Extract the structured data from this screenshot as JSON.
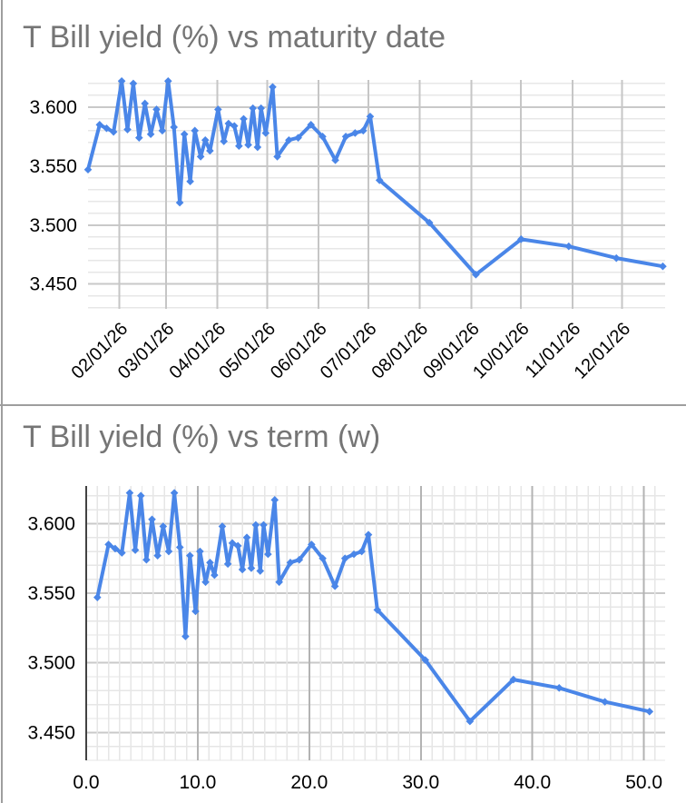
{
  "page": {
    "background": "#ffffff",
    "frame_line_color": "#9e9e9e",
    "divider_color": "#9e9e9e",
    "title_color": "#757575",
    "axis_label_color": "#000000"
  },
  "chart_data": [
    {
      "type": "line",
      "title": "T Bill yield (%) vs maturity date",
      "xlabel": "",
      "ylabel": "",
      "legend": "none",
      "grid": true,
      "xlim_weeks": [
        1.0,
        50.7
      ],
      "ylim": [
        3.429,
        3.623
      ],
      "x_axis": {
        "kind": "maturity date",
        "rotation_deg": -45,
        "minor_grid": false,
        "tick_labels": [
          "02/01/26",
          "03/01/26",
          "04/01/26",
          "05/01/26",
          "06/01/26",
          "07/01/26",
          "08/01/26",
          "09/01/26",
          "10/01/26",
          "11/01/26",
          "12/01/26"
        ],
        "tick_positions_weeks": [
          3.714,
          7.714,
          12.143,
          16.429,
          20.857,
          25.143,
          29.571,
          34.0,
          38.286,
          42.714,
          47.0
        ]
      },
      "y_axis": {
        "tick_labels": [
          "3.450",
          "3.500",
          "3.550",
          "3.600"
        ],
        "tick_values": [
          3.45,
          3.5,
          3.55,
          3.6
        ],
        "minor_step": 0.01
      },
      "series": [
        {
          "name": "T Bill yield (%)",
          "color": "#4a86e8",
          "marker": "diamond",
          "points_weeks_yield": [
            [
              1.0,
              3.547
            ],
            [
              2.0,
              3.585
            ],
            [
              2.6,
              3.582
            ],
            [
              3.2,
              3.579
            ],
            [
              3.9,
              3.622
            ],
            [
              4.4,
              3.581
            ],
            [
              4.9,
              3.62
            ],
            [
              5.4,
              3.574
            ],
            [
              5.9,
              3.603
            ],
            [
              6.4,
              3.577
            ],
            [
              6.9,
              3.598
            ],
            [
              7.4,
              3.58
            ],
            [
              7.9,
              3.622
            ],
            [
              8.4,
              3.583
            ],
            [
              8.9,
              3.519
            ],
            [
              9.3,
              3.577
            ],
            [
              9.8,
              3.537
            ],
            [
              10.2,
              3.58
            ],
            [
              10.7,
              3.558
            ],
            [
              11.1,
              3.572
            ],
            [
              11.5,
              3.563
            ],
            [
              12.2,
              3.598
            ],
            [
              12.7,
              3.571
            ],
            [
              13.1,
              3.586
            ],
            [
              13.6,
              3.584
            ],
            [
              14.0,
              3.567
            ],
            [
              14.4,
              3.59
            ],
            [
              14.8,
              3.568
            ],
            [
              15.2,
              3.599
            ],
            [
              15.6,
              3.566
            ],
            [
              15.9,
              3.599
            ],
            [
              16.3,
              3.578
            ],
            [
              16.9,
              3.617
            ],
            [
              17.3,
              3.558
            ],
            [
              18.3,
              3.572
            ],
            [
              19.1,
              3.574
            ],
            [
              20.2,
              3.585
            ],
            [
              21.2,
              3.575
            ],
            [
              22.3,
              3.555
            ],
            [
              23.2,
              3.575
            ],
            [
              24.0,
              3.578
            ],
            [
              24.7,
              3.58
            ],
            [
              25.3,
              3.592
            ],
            [
              26.1,
              3.538
            ],
            [
              30.4,
              3.502
            ],
            [
              34.4,
              3.458
            ],
            [
              38.3,
              3.488
            ],
            [
              42.4,
              3.482
            ],
            [
              46.5,
              3.472
            ],
            [
              50.5,
              3.465
            ]
          ]
        }
      ]
    },
    {
      "type": "line",
      "title": "T Bill yield (%) vs term (w)",
      "xlabel": "",
      "ylabel": "",
      "legend": "none",
      "grid": true,
      "xlim_weeks": [
        0.0,
        51.9
      ],
      "ylim": [
        3.43,
        3.627
      ],
      "x_axis": {
        "kind": "term (weeks)",
        "rotation_deg": 0,
        "minor_grid": true,
        "minor_step": 1,
        "axis_line": true,
        "tick_labels": [
          "0.0",
          "10.0",
          "20.0",
          "30.0",
          "40.0",
          "50.0"
        ],
        "tick_positions_weeks": [
          0,
          10,
          20,
          30,
          40,
          50
        ]
      },
      "y_axis": {
        "tick_labels": [
          "3.450",
          "3.500",
          "3.550",
          "3.600"
        ],
        "tick_values": [
          3.45,
          3.5,
          3.55,
          3.6
        ],
        "minor_step": 0.01
      },
      "series": [
        {
          "name": "T Bill yield (%)",
          "color": "#4a86e8",
          "marker": "diamond",
          "points_weeks_yield": [
            [
              1.0,
              3.547
            ],
            [
              2.0,
              3.585
            ],
            [
              2.6,
              3.582
            ],
            [
              3.2,
              3.579
            ],
            [
              3.9,
              3.622
            ],
            [
              4.4,
              3.581
            ],
            [
              4.9,
              3.62
            ],
            [
              5.4,
              3.574
            ],
            [
              5.9,
              3.603
            ],
            [
              6.4,
              3.577
            ],
            [
              6.9,
              3.598
            ],
            [
              7.4,
              3.58
            ],
            [
              7.9,
              3.622
            ],
            [
              8.4,
              3.583
            ],
            [
              8.9,
              3.519
            ],
            [
              9.3,
              3.577
            ],
            [
              9.8,
              3.537
            ],
            [
              10.2,
              3.58
            ],
            [
              10.7,
              3.558
            ],
            [
              11.1,
              3.572
            ],
            [
              11.5,
              3.563
            ],
            [
              12.2,
              3.598
            ],
            [
              12.7,
              3.571
            ],
            [
              13.1,
              3.586
            ],
            [
              13.6,
              3.584
            ],
            [
              14.0,
              3.567
            ],
            [
              14.4,
              3.59
            ],
            [
              14.8,
              3.568
            ],
            [
              15.2,
              3.599
            ],
            [
              15.6,
              3.566
            ],
            [
              15.9,
              3.599
            ],
            [
              16.3,
              3.578
            ],
            [
              16.9,
              3.617
            ],
            [
              17.3,
              3.558
            ],
            [
              18.3,
              3.572
            ],
            [
              19.1,
              3.574
            ],
            [
              20.2,
              3.585
            ],
            [
              21.2,
              3.575
            ],
            [
              22.3,
              3.555
            ],
            [
              23.2,
              3.575
            ],
            [
              24.0,
              3.578
            ],
            [
              24.7,
              3.58
            ],
            [
              25.3,
              3.592
            ],
            [
              26.1,
              3.538
            ],
            [
              30.4,
              3.502
            ],
            [
              34.4,
              3.458
            ],
            [
              38.3,
              3.488
            ],
            [
              42.4,
              3.482
            ],
            [
              46.5,
              3.472
            ],
            [
              50.5,
              3.465
            ]
          ]
        }
      ]
    }
  ]
}
